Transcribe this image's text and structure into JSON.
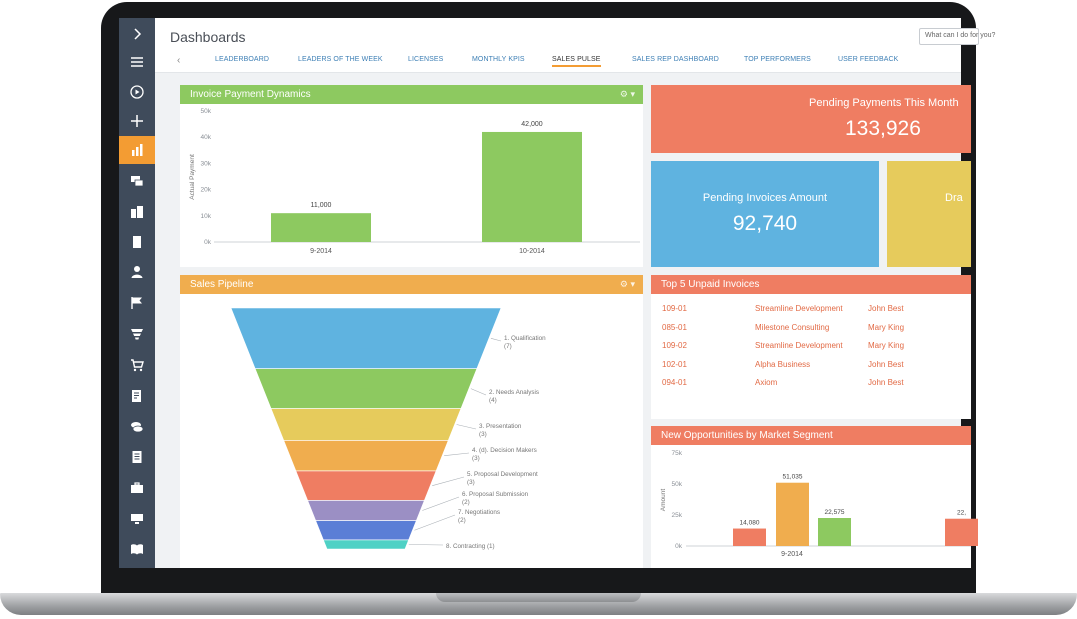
{
  "page": {
    "title": "Dashboards",
    "search_placeholder": "What can I do for you?"
  },
  "tabs": [
    {
      "label": "LEADERBOARD"
    },
    {
      "label": "LEADERS OF THE WEEK"
    },
    {
      "label": "LICENSES"
    },
    {
      "label": "MONTHLY KPIS"
    },
    {
      "label": "SALES PULSE",
      "active": true
    },
    {
      "label": "SALES REP DASHBOARD"
    },
    {
      "label": "TOP PERFORMERS"
    },
    {
      "label": "USER FEEDBACK"
    }
  ],
  "sidebar": {
    "items": [
      {
        "icon": "chevron-right-icon"
      },
      {
        "icon": "menu-icon"
      },
      {
        "icon": "play-circle-icon"
      },
      {
        "icon": "plus-icon"
      },
      {
        "icon": "bar-chart-icon",
        "active": true
      },
      {
        "icon": "chat-icon"
      },
      {
        "icon": "buildings-icon"
      },
      {
        "icon": "building-icon"
      },
      {
        "icon": "person-icon"
      },
      {
        "icon": "flag-icon"
      },
      {
        "icon": "funnel-icon"
      },
      {
        "icon": "cart-icon"
      },
      {
        "icon": "edit-document-icon"
      },
      {
        "icon": "coins-icon"
      },
      {
        "icon": "document-icon"
      },
      {
        "icon": "briefcase-icon"
      },
      {
        "icon": "monitor-icon"
      },
      {
        "icon": "book-icon"
      }
    ]
  },
  "widgets": {
    "invoice_payment": {
      "title": "Invoice Payment Dynamics",
      "color": "#8dc960"
    },
    "sales_pipeline": {
      "title": "Sales Pipeline",
      "color": "#f0ad4e"
    },
    "pending_payments": {
      "caption": "Pending Payments This Month",
      "value": "133,926",
      "color": "#ef7d62"
    },
    "pending_invoices": {
      "caption": "Pending Invoices Amount",
      "value": "92,740",
      "color": "#5fb3e0"
    },
    "draft_tile": {
      "caption": "Dra",
      "color": "#e6cb5c"
    },
    "top_unpaid": {
      "title": "Top 5 Unpaid Invoices",
      "color": "#ef7d62",
      "rows": [
        {
          "number": "109-01",
          "account": "Streamline Development",
          "owner": "John Best"
        },
        {
          "number": "085-01",
          "account": "Milestone Consulting",
          "owner": "Mary King"
        },
        {
          "number": "109-02",
          "account": "Streamline Development",
          "owner": "Mary King"
        },
        {
          "number": "102-01",
          "account": "Alpha Business",
          "owner": "John Best"
        },
        {
          "number": "094-01",
          "account": "Axiom",
          "owner": "John Best"
        }
      ]
    },
    "new_opps": {
      "title": "New Opportunities by Market Segment",
      "color": "#ef7d62"
    }
  },
  "chart_data": [
    {
      "type": "bar",
      "title": "Invoice Payment Dynamics",
      "categories": [
        "9-2014",
        "10-2014"
      ],
      "values": [
        11000,
        42000
      ],
      "value_labels": [
        "11,000",
        "42,000"
      ],
      "ylabel": "Actual Payment",
      "yticks": [
        "0k",
        "10k",
        "20k",
        "30k",
        "40k",
        "50k"
      ],
      "ylim": [
        0,
        50000
      ],
      "bar_color": "#8dc960"
    },
    {
      "type": "funnel",
      "title": "Sales Pipeline",
      "stages": [
        {
          "label": "1. Qualification",
          "count_label": "(7)",
          "color": "#5fb3e0"
        },
        {
          "label": "2. Needs Analysis",
          "count_label": "(4)",
          "color": "#8dc960"
        },
        {
          "label": "3. Presentation",
          "count_label": "(3)",
          "color": "#e6cb5c"
        },
        {
          "label": "4. (d). Decision Makers",
          "count_label": "(3)",
          "color": "#f0ad4e"
        },
        {
          "label": "5. Proposal Development",
          "count_label": "(3)",
          "color": "#ef7d62"
        },
        {
          "label": "6. Proposal Submission",
          "count_label": "(2)",
          "color": "#9b8fc4"
        },
        {
          "label": "7. Negotiations",
          "count_label": "(2)",
          "color": "#5b7ed6"
        },
        {
          "label": "8. Contracting",
          "count_label": "(1)",
          "color": "#4fd1c5"
        }
      ]
    },
    {
      "type": "bar",
      "title": "New Opportunities by Market Segment",
      "categories": [
        "9-2014"
      ],
      "series": [
        {
          "values": [
            14080
          ],
          "value_labels": [
            "14,080"
          ],
          "color": "#ef7d62"
        },
        {
          "values": [
            51035
          ],
          "value_labels": [
            "51,035"
          ],
          "color": "#f0ad4e"
        },
        {
          "values": [
            22575
          ],
          "value_labels": [
            "22,575"
          ],
          "color": "#8dc960"
        },
        {
          "values": [
            22000
          ],
          "value_labels": [
            "22,"
          ],
          "color": "#ef7d62"
        }
      ],
      "ylabel": "Amount",
      "yticks": [
        "0k",
        "25k",
        "50k",
        "75k"
      ],
      "ylim": [
        0,
        75000
      ]
    }
  ]
}
